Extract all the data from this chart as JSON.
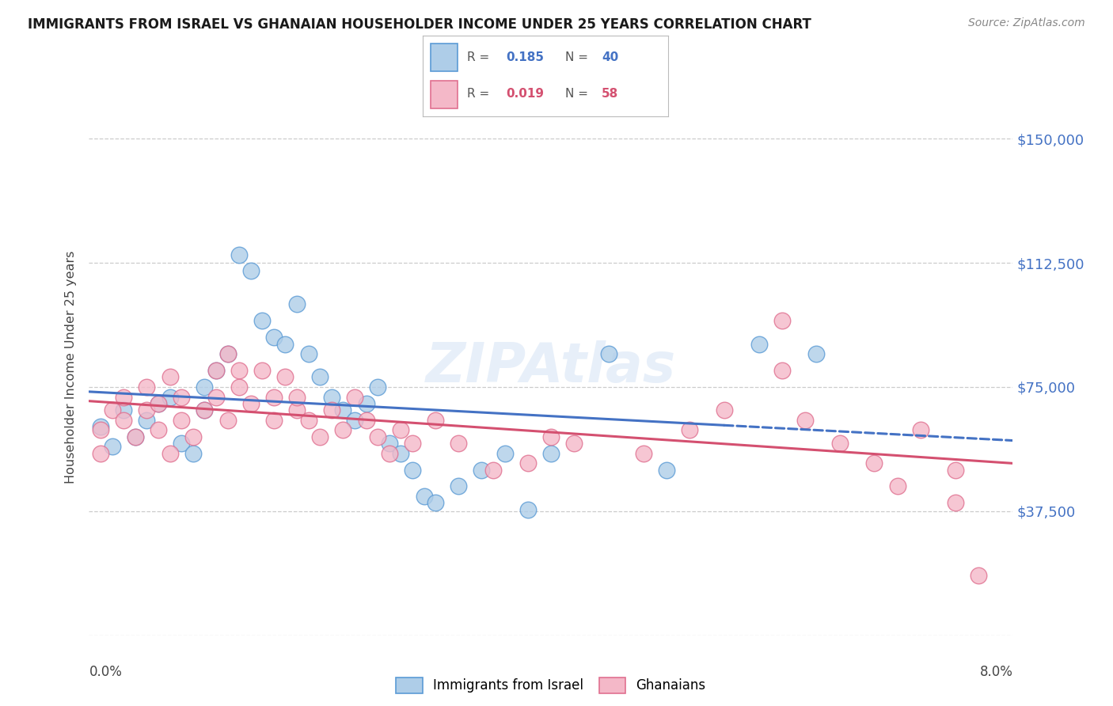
{
  "title": "IMMIGRANTS FROM ISRAEL VS GHANAIAN HOUSEHOLDER INCOME UNDER 25 YEARS CORRELATION CHART",
  "source": "Source: ZipAtlas.com",
  "ylabel": "Householder Income Under 25 years",
  "xmin": 0.0,
  "xmax": 0.08,
  "ymin": 0,
  "ymax": 162000,
  "yticks": [
    0,
    37500,
    75000,
    112500,
    150000
  ],
  "ytick_labels": [
    "",
    "$37,500",
    "$75,000",
    "$112,500",
    "$150,000"
  ],
  "legend_bottom_label1": "Immigrants from Israel",
  "legend_bottom_label2": "Ghanaians",
  "blue_scatter_color": "#aecde8",
  "blue_edge_color": "#5b9bd5",
  "pink_scatter_color": "#f4b8c8",
  "pink_edge_color": "#e07090",
  "trend_blue_color": "#4472c4",
  "trend_pink_color": "#d45070",
  "yaxis_label_color": "#4472c4",
  "israel_R": "0.185",
  "israel_N": "40",
  "ghana_R": "0.019",
  "ghana_N": "58",
  "israel_x": [
    0.001,
    0.002,
    0.003,
    0.004,
    0.005,
    0.006,
    0.007,
    0.008,
    0.009,
    0.01,
    0.01,
    0.011,
    0.012,
    0.013,
    0.014,
    0.015,
    0.016,
    0.017,
    0.018,
    0.019,
    0.02,
    0.021,
    0.022,
    0.023,
    0.024,
    0.025,
    0.026,
    0.027,
    0.028,
    0.029,
    0.03,
    0.032,
    0.034,
    0.036,
    0.038,
    0.04,
    0.045,
    0.05,
    0.058,
    0.063
  ],
  "israel_y": [
    63000,
    57000,
    68000,
    60000,
    65000,
    70000,
    72000,
    58000,
    55000,
    68000,
    75000,
    80000,
    85000,
    115000,
    110000,
    95000,
    90000,
    88000,
    100000,
    85000,
    78000,
    72000,
    68000,
    65000,
    70000,
    75000,
    58000,
    55000,
    50000,
    42000,
    40000,
    45000,
    50000,
    55000,
    38000,
    55000,
    85000,
    50000,
    88000,
    85000
  ],
  "ghana_x": [
    0.001,
    0.001,
    0.002,
    0.003,
    0.003,
    0.004,
    0.005,
    0.005,
    0.006,
    0.006,
    0.007,
    0.007,
    0.008,
    0.008,
    0.009,
    0.01,
    0.011,
    0.011,
    0.012,
    0.012,
    0.013,
    0.013,
    0.014,
    0.015,
    0.016,
    0.016,
    0.017,
    0.018,
    0.018,
    0.019,
    0.02,
    0.021,
    0.022,
    0.023,
    0.024,
    0.025,
    0.026,
    0.027,
    0.028,
    0.03,
    0.032,
    0.035,
    0.038,
    0.04,
    0.042,
    0.048,
    0.052,
    0.055,
    0.06,
    0.062,
    0.065,
    0.068,
    0.07,
    0.072,
    0.075,
    0.077,
    0.06,
    0.075
  ],
  "ghana_y": [
    62000,
    55000,
    68000,
    72000,
    65000,
    60000,
    75000,
    68000,
    70000,
    62000,
    55000,
    78000,
    65000,
    72000,
    60000,
    68000,
    80000,
    72000,
    85000,
    65000,
    80000,
    75000,
    70000,
    80000,
    72000,
    65000,
    78000,
    68000,
    72000,
    65000,
    60000,
    68000,
    62000,
    72000,
    65000,
    60000,
    55000,
    62000,
    58000,
    65000,
    58000,
    50000,
    52000,
    60000,
    58000,
    55000,
    62000,
    68000,
    80000,
    65000,
    58000,
    52000,
    45000,
    62000,
    40000,
    18000,
    95000,
    50000
  ]
}
